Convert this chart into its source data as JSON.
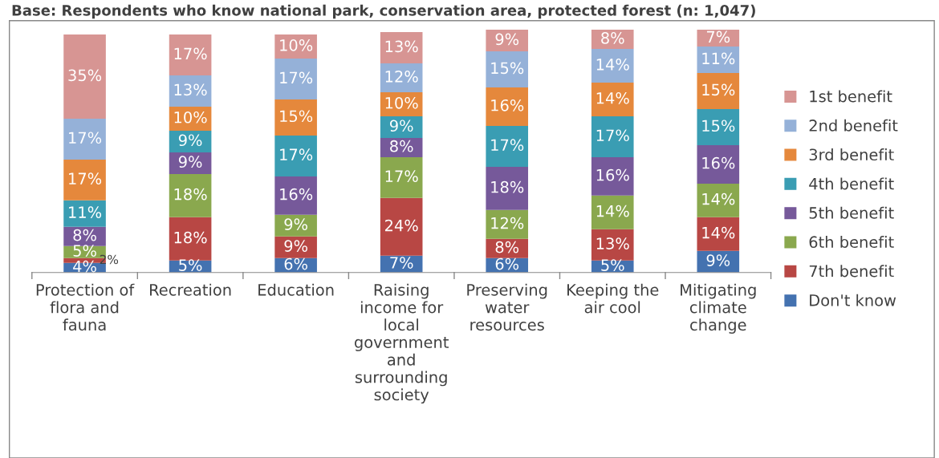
{
  "chart_data": {
    "type": "bar",
    "stacked": true,
    "legend": "right",
    "grid": false,
    "title": "Base: Respondents who know national park, conservation area, protected forest (n: 1,047)",
    "categories": [
      "Protection of flora and fauna",
      "Recreation",
      "Education",
      "Raising income for local government and surrounding society",
      "Preserving water resources",
      "Keeping the air cool",
      "Mitigating climate change"
    ],
    "series": [
      {
        "name": "Don't know",
        "color": "#4472b0",
        "values": [
          4,
          5,
          6,
          7,
          6,
          5,
          9
        ],
        "value_labels": [
          "4%",
          "5%",
          "6%",
          "7%",
          "6%",
          "5%",
          "9%"
        ]
      },
      {
        "name": "7th benefit",
        "color": "#b84744",
        "values": [
          2,
          18,
          9,
          24,
          8,
          13,
          14
        ],
        "value_labels": [
          "2%",
          "18%",
          "9%",
          "24%",
          "8%",
          "13%",
          "14%"
        ]
      },
      {
        "name": "6th benefit",
        "color": "#8aa84e",
        "values": [
          5,
          18,
          9,
          17,
          12,
          14,
          14
        ],
        "value_labels": [
          "5%",
          "18%",
          "9%",
          "17%",
          "12%",
          "14%",
          "14%"
        ]
      },
      {
        "name": "5th benefit",
        "color": "#76599a",
        "values": [
          8,
          9,
          16,
          8,
          18,
          16,
          16
        ],
        "value_labels": [
          "8%",
          "9%",
          "16%",
          "8%",
          "18%",
          "16%",
          "16%"
        ]
      },
      {
        "name": "4th benefit",
        "color": "#3a9db3",
        "values": [
          11,
          9,
          17,
          9,
          17,
          17,
          15
        ],
        "value_labels": [
          "11%",
          "9%",
          "17%",
          "9%",
          "17%",
          "17%",
          "15%"
        ]
      },
      {
        "name": "3rd benefit",
        "color": "#e5883c",
        "values": [
          17,
          10,
          15,
          10,
          16,
          14,
          15
        ],
        "value_labels": [
          "17%",
          "10%",
          "15%",
          "10%",
          "16%",
          "14%",
          "15%"
        ]
      },
      {
        "name": "2nd benefit",
        "color": "#95b1d8",
        "values": [
          17,
          13,
          17,
          12,
          15,
          14,
          11
        ],
        "value_labels": [
          "17%",
          "13%",
          "17%",
          "12%",
          "15%",
          "14%",
          "11%"
        ]
      },
      {
        "name": "1st benefit",
        "color": "#d79593",
        "values": [
          35,
          17,
          10,
          13,
          9,
          8,
          7
        ],
        "value_labels": [
          "35%",
          "17%",
          "10%",
          "13%",
          "9%",
          "8%",
          "7%"
        ]
      }
    ]
  }
}
